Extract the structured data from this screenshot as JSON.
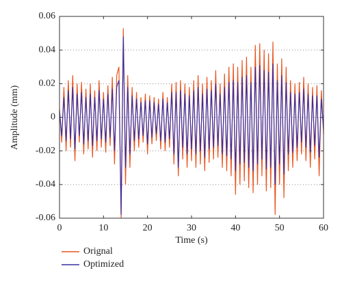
{
  "chart_data": {
    "type": "line",
    "x_label": "Time (s)",
    "y_label": "Amplitude (mm)",
    "x": [
      0,
      0.5,
      1,
      1.5,
      2,
      2.5,
      3,
      3.5,
      4,
      4.5,
      5,
      5.5,
      6,
      6.5,
      7,
      7.5,
      8,
      8.5,
      9,
      9.5,
      10,
      10.5,
      11,
      11.5,
      12,
      12.5,
      13,
      13.5,
      14,
      14.5,
      15,
      15.5,
      16,
      16.5,
      17,
      17.5,
      18,
      18.5,
      19,
      19.5,
      20,
      20.5,
      21,
      21.5,
      22,
      22.5,
      23,
      23.5,
      24,
      24.5,
      25,
      25.5,
      26,
      26.5,
      27,
      27.5,
      28,
      28.5,
      29,
      29.5,
      30,
      30.5,
      31,
      31.5,
      32,
      32.5,
      33,
      33.5,
      34,
      34.5,
      35,
      35.5,
      36,
      36.5,
      37,
      37.5,
      38,
      38.5,
      39,
      39.5,
      40,
      40.5,
      41,
      41.5,
      42,
      42.5,
      43,
      43.5,
      44,
      44.5,
      45,
      45.5,
      46,
      46.5,
      47,
      47.5,
      48,
      48.5,
      49,
      49.5,
      50,
      50.5,
      51,
      51.5,
      52,
      52.5,
      53,
      53.5,
      54,
      54.5,
      55,
      55.5,
      56,
      56.5,
      57,
      57.5,
      58,
      58.5,
      59,
      59.5,
      60
    ],
    "series": [
      {
        "name": "Orignal",
        "color": "#e8541e",
        "values": [
          0.005,
          -0.015,
          0.018,
          -0.02,
          0.022,
          -0.018,
          0.025,
          -0.026,
          0.02,
          -0.015,
          0.021,
          -0.022,
          0.017,
          -0.019,
          0.02,
          -0.024,
          0.016,
          -0.02,
          0.022,
          -0.018,
          0.015,
          -0.021,
          0.019,
          -0.017,
          0.024,
          -0.028,
          0.025,
          0.03,
          -0.06,
          0.053,
          -0.04,
          0.025,
          -0.03,
          0.018,
          -0.02,
          0.015,
          -0.018,
          0.012,
          -0.015,
          0.014,
          -0.022,
          0.013,
          -0.016,
          0.012,
          -0.014,
          0.011,
          -0.019,
          0.015,
          -0.02,
          0.012,
          -0.018,
          0.02,
          -0.028,
          0.021,
          -0.035,
          0.022,
          -0.025,
          0.02,
          -0.03,
          0.018,
          -0.026,
          0.022,
          -0.03,
          0.025,
          -0.028,
          0.02,
          -0.032,
          0.024,
          -0.027,
          0.022,
          -0.025,
          0.028,
          -0.024,
          0.02,
          -0.03,
          0.026,
          -0.032,
          0.03,
          -0.035,
          0.032,
          -0.046,
          0.03,
          -0.04,
          0.034,
          -0.038,
          0.036,
          -0.042,
          0.03,
          -0.045,
          0.043,
          -0.04,
          0.044,
          -0.035,
          0.04,
          -0.044,
          0.038,
          -0.042,
          0.045,
          -0.058,
          0.032,
          -0.04,
          0.035,
          -0.048,
          0.03,
          -0.032,
          0.022,
          -0.03,
          0.02,
          -0.026,
          0.021,
          -0.022,
          0.024,
          -0.026,
          0.02,
          -0.03,
          0.018,
          -0.025,
          0.019,
          -0.035,
          0.016,
          -0.01
        ]
      },
      {
        "name": "Optimized",
        "color": "#3a2ea0",
        "values": [
          0.004,
          -0.011,
          0.012,
          -0.014,
          0.016,
          -0.013,
          0.018,
          -0.019,
          0.014,
          -0.011,
          0.015,
          -0.016,
          0.012,
          -0.014,
          0.014,
          -0.017,
          0.012,
          -0.014,
          0.016,
          -0.013,
          0.011,
          -0.015,
          0.014,
          -0.012,
          0.017,
          -0.02,
          0.018,
          0.022,
          -0.058,
          0.048,
          -0.03,
          0.018,
          -0.022,
          0.013,
          -0.014,
          0.011,
          -0.013,
          0.009,
          -0.011,
          0.01,
          -0.016,
          0.01,
          -0.012,
          0.009,
          -0.01,
          0.008,
          -0.014,
          0.011,
          -0.015,
          0.009,
          -0.013,
          0.015,
          -0.022,
          0.015,
          -0.03,
          0.016,
          -0.018,
          0.014,
          -0.022,
          0.013,
          -0.019,
          0.016,
          -0.022,
          0.018,
          -0.02,
          0.014,
          -0.024,
          0.017,
          -0.019,
          0.016,
          -0.018,
          0.02,
          -0.017,
          0.014,
          -0.022,
          0.018,
          -0.023,
          0.021,
          -0.025,
          0.022,
          -0.032,
          0.021,
          -0.028,
          0.024,
          -0.027,
          0.025,
          -0.03,
          0.021,
          -0.032,
          0.03,
          -0.028,
          0.031,
          -0.025,
          0.028,
          -0.031,
          0.027,
          -0.03,
          0.032,
          -0.04,
          0.022,
          -0.028,
          0.025,
          -0.034,
          0.021,
          -0.022,
          0.015,
          -0.021,
          0.014,
          -0.018,
          0.015,
          -0.015,
          0.017,
          -0.018,
          0.014,
          -0.021,
          0.013,
          -0.017,
          0.013,
          -0.024,
          0.011,
          -0.007
        ]
      }
    ],
    "xlim": [
      0,
      60
    ],
    "xticks": [
      0,
      10,
      20,
      30,
      40,
      50,
      60
    ],
    "ylim": [
      -0.06,
      0.06
    ],
    "yticks": [
      -0.06,
      -0.04,
      -0.02,
      0,
      0.02,
      0.04,
      0.06
    ],
    "grid": true,
    "legend": "bottom-left"
  }
}
